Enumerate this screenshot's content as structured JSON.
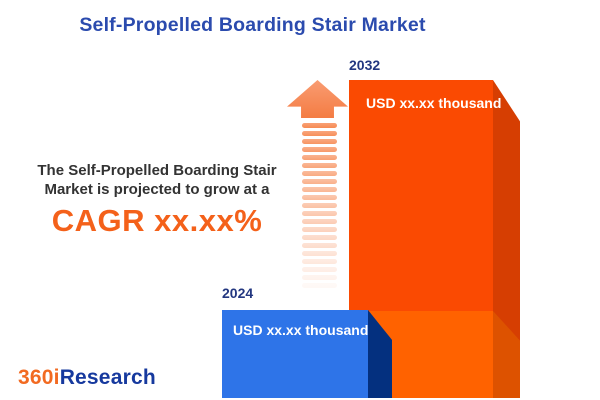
{
  "title": "Self-Propelled Boarding Stair Market",
  "annotation": {
    "line1": "The Self-Propelled Boarding Stair",
    "line2": "Market is projected to grow at a",
    "cagr": "CAGR xx.xx%"
  },
  "bars": [
    {
      "year": "2024",
      "value_label": "USD xx.xx thousand"
    },
    {
      "year": "2032",
      "value_label": "USD xx.xx thousand"
    }
  ],
  "logo": {
    "prefix": "360i",
    "suffix": "Research"
  },
  "colors": {
    "title_blue": "#2B4BAE",
    "year_navy": "#233780",
    "text_dark": "#333333",
    "cagr_orange": "#F4611A",
    "bar2032_front": "#FA4A02",
    "bar2032_side": "#D63E02",
    "bar2032_base_front": "#FF6200",
    "bar2032_base_side": "#DD5200",
    "bar2024_front": "#2E74E8",
    "bar2024_side": "#04307F",
    "arrow_orange": "#F78C55",
    "logo_orange": "#F26A21",
    "logo_blue": "#16399E"
  },
  "chart_data": {
    "type": "bar",
    "categories": [
      "2024",
      "2032"
    ],
    "value_labels": [
      "USD xx.xx thousand",
      "USD xx.xx thousand"
    ],
    "values_masked": true,
    "unit": "USD thousand",
    "title": "Self-Propelled Boarding Stair Market",
    "annotation": "The Self-Propelled Boarding Stair Market is projected to grow at a CAGR xx.xx%",
    "legend": "none",
    "grid": false,
    "bar_colors": [
      "#2E74E8",
      "#FA4A02"
    ]
  }
}
